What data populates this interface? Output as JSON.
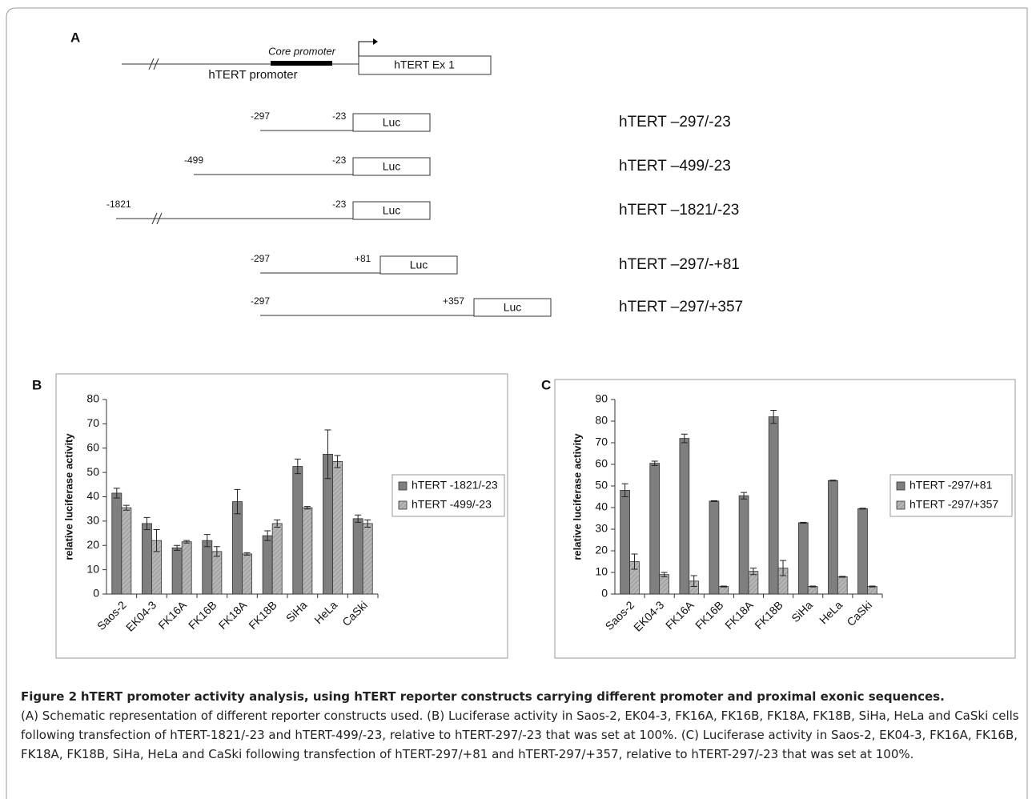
{
  "panel_a": {
    "label": "A",
    "core_promoter": "Core promoter",
    "promoter": "hTERT promoter",
    "exon": "hTERT Ex 1",
    "constructs": [
      {
        "start": "-297",
        "end": "-23",
        "box": "Luc",
        "name": "hTERT –297/-23"
      },
      {
        "start": "-499",
        "end": "-23",
        "box": "Luc",
        "name": "hTERT –499/-23"
      },
      {
        "start": "-1821",
        "end": "-23",
        "box": "Luc",
        "name": "hTERT –1821/-23"
      },
      {
        "start": "-297",
        "end": "+81",
        "box": "Luc",
        "name": "hTERT –297/-+81"
      },
      {
        "start": "-297",
        "end": "+357",
        "box": "Luc",
        "name": "hTERT –297/+357"
      }
    ]
  },
  "chart_data": [
    {
      "type": "bar",
      "panel_label": "B",
      "ylabel": "relative luciferase activity",
      "categories": [
        "Saos-2",
        "EK04-3",
        "FK16A",
        "FK16B",
        "FK18A",
        "FK18B",
        "SiHa",
        "HeLa",
        "CaSki"
      ],
      "series": [
        {
          "name": "hTERT -1821/-23",
          "color": "#7f7f7f",
          "hatch": false,
          "values": [
            41.5,
            29,
            19,
            22,
            38,
            24,
            52.5,
            57.5,
            31
          ],
          "errors": [
            2,
            2.5,
            1,
            2.5,
            5,
            2,
            3,
            10,
            1.5
          ]
        },
        {
          "name": "hTERT -499/-23",
          "color": "#b5b5b5",
          "hatch": true,
          "values": [
            35.5,
            22,
            21.5,
            17.5,
            16.5,
            29,
            35.5,
            54.5,
            29
          ],
          "errors": [
            1,
            4.5,
            0.5,
            2,
            0.5,
            1.5,
            0.5,
            2.5,
            1.5
          ]
        }
      ],
      "ylim": [
        0,
        80
      ],
      "yticks": [
        0,
        10,
        20,
        30,
        40,
        50,
        60,
        70,
        80
      ],
      "legend": "right"
    },
    {
      "type": "bar",
      "panel_label": "C",
      "ylabel": "relative luciferase activity",
      "categories": [
        "Saos-2",
        "EK04-3",
        "FK16A",
        "FK16B",
        "FK18A",
        "FK18B",
        "SiHa",
        "HeLa",
        "CaSki"
      ],
      "series": [
        {
          "name": "hTERT -297/+81",
          "color": "#7f7f7f",
          "hatch": false,
          "values": [
            48,
            60.5,
            72,
            43,
            45.5,
            82,
            33,
            52.5,
            39.5
          ],
          "errors": [
            3,
            1,
            2,
            0.2,
            1.5,
            3,
            0.2,
            0.2,
            0.2
          ]
        },
        {
          "name": "hTERT -297/+357",
          "color": "#b5b5b5",
          "hatch": true,
          "values": [
            15,
            9,
            6,
            3.5,
            10.5,
            12,
            3.5,
            8,
            3.5
          ],
          "errors": [
            3.5,
            1,
            2.5,
            0.2,
            1.5,
            3.5,
            0.2,
            0.2,
            0.2
          ]
        }
      ],
      "ylim": [
        0,
        90
      ],
      "yticks": [
        0,
        10,
        20,
        30,
        40,
        50,
        60,
        70,
        80,
        90
      ],
      "legend": "right"
    }
  ],
  "caption": {
    "figure": "Figure 2",
    "title": "hTERT promoter activity analysis, using hTERT reporter constructs carrying different promoter and proximal exonic sequences.",
    "text": "(A) Schematic representation of different reporter constructs used. (B) Luciferase activity in Saos-2, EK04-3, FK16A, FK16B, FK18A, FK18B, SiHa, HeLa and CaSki cells following transfection of hTERT-1821/-23 and hTERT-499/-23, relative to hTERT-297/-23 that was set at 100%. (C) Luciferase activity in Saos-2, EK04-3, FK16A, FK16B, FK18A, FK18B, SiHa, HeLa and CaSki following transfection of hTERT-297/+81 and hTERT-297/+357, relative to hTERT-297/-23 that was set at 100%."
  }
}
